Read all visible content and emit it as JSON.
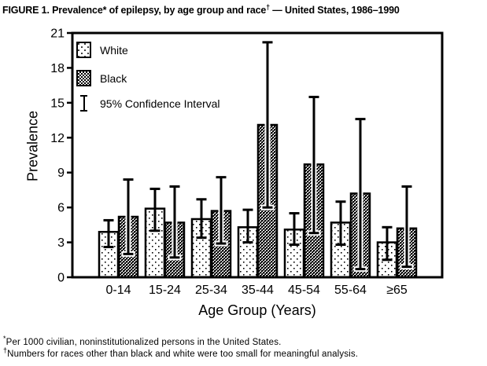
{
  "title": {
    "main": "FIGURE 1. Prevalence* of epilepsy, by age group and race",
    "dagger": "†",
    "tail": " — United States, 1986–1990"
  },
  "footnotes": [
    {
      "marker": "*",
      "text": "Per 1000 civilian, noninstitutionalized persons in the United States."
    },
    {
      "marker": "†",
      "text": "Numbers for races other than black and white were too small for meaningful analysis."
    }
  ],
  "colors": {
    "ink": "#000000",
    "background": "#ffffff"
  },
  "chart_data": {
    "type": "bar",
    "title": "FIGURE 1. Prevalence* of epilepsy, by age group and race† — United States, 1986–1990",
    "xlabel": "Age Group (Years)",
    "ylabel": "Prevalence",
    "ylim": [
      0,
      21
    ],
    "yticks": [
      0,
      3,
      6,
      9,
      12,
      15,
      18,
      21
    ],
    "grid": false,
    "legend_position": "upper-left-inside",
    "error_bars": "95% confidence interval",
    "categories": [
      "0-14",
      "15-24",
      "25-34",
      "35-44",
      "45-54",
      "55-64",
      "≥65"
    ],
    "series": [
      {
        "name": "White",
        "pattern": "sparse-dots",
        "values": [
          3.9,
          5.9,
          5.0,
          4.3,
          4.1,
          4.7,
          3.0
        ],
        "ci_low": [
          2.6,
          4.0,
          3.4,
          3.0,
          2.8,
          2.8,
          1.5
        ],
        "ci_high": [
          4.9,
          7.6,
          6.7,
          5.8,
          5.5,
          6.5,
          4.3
        ]
      },
      {
        "name": "Black",
        "pattern": "dense-checker",
        "values": [
          5.2,
          4.7,
          5.7,
          13.1,
          9.7,
          7.2,
          4.2
        ],
        "ci_low": [
          2.0,
          1.7,
          2.9,
          6.0,
          3.8,
          0.7,
          0.9
        ],
        "ci_high": [
          8.4,
          7.8,
          8.6,
          20.2,
          15.5,
          13.6,
          7.8
        ]
      }
    ],
    "legend": [
      "White",
      "Black",
      "95% Confidence Interval"
    ]
  }
}
